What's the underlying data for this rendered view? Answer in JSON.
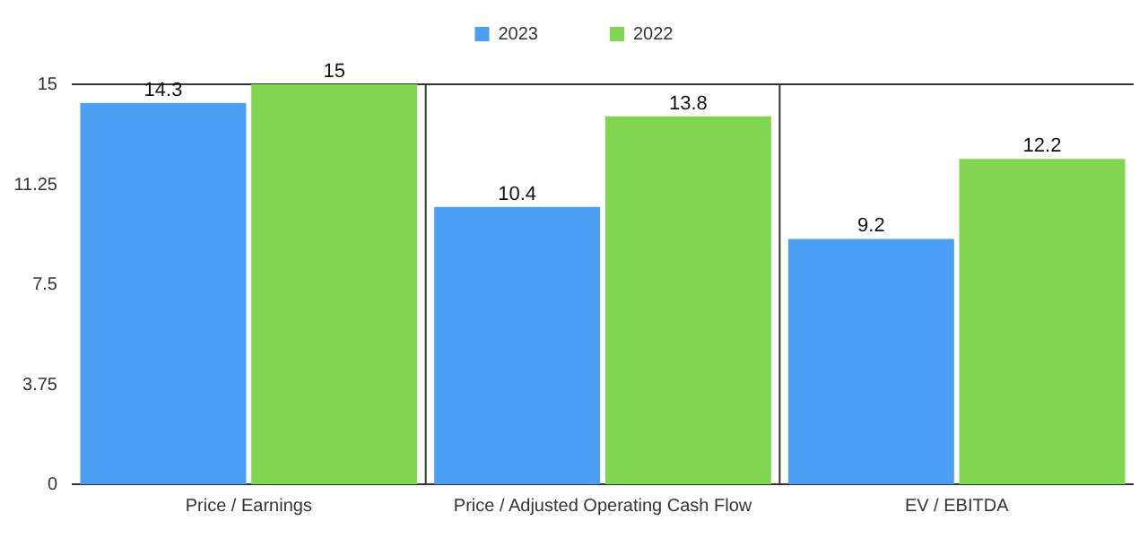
{
  "chart_data": {
    "type": "bar",
    "categories": [
      "Price / Earnings",
      "Price / Adjusted Operating Cash Flow",
      "EV / EBITDA"
    ],
    "series": [
      {
        "name": "2023",
        "color": "#4a9ff5",
        "values": [
          14.3,
          10.4,
          9.2
        ]
      },
      {
        "name": "2022",
        "color": "#80d64f",
        "values": [
          15,
          13.8,
          12.2
        ]
      }
    ],
    "ylim": [
      0,
      15
    ],
    "yticks": [
      0,
      3.75,
      7.5,
      11.25,
      15
    ],
    "grid": false,
    "legend": "top",
    "data_labels": true
  }
}
